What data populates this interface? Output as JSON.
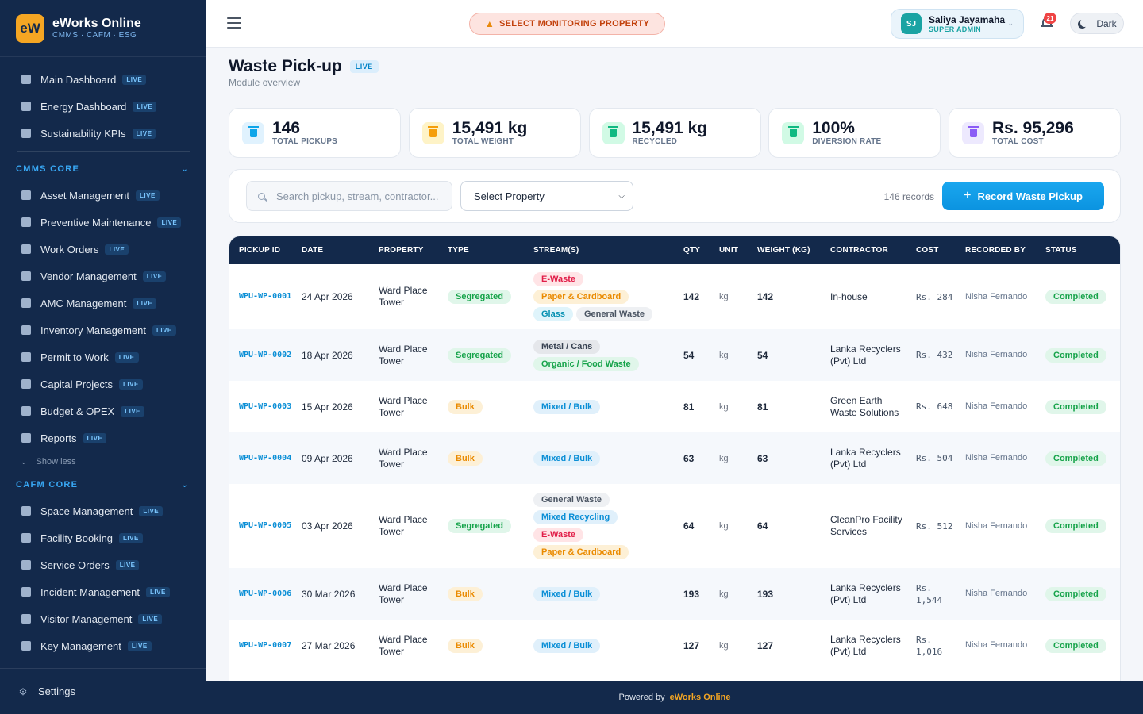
{
  "brand": {
    "logo": "eW",
    "name": "eWorks Online",
    "tagline": "CMMS · CAFM · ESG"
  },
  "sidebar": {
    "top_items": [
      {
        "label": "Main Dashboard",
        "badge": "LIVE",
        "icon": "grid-icon"
      },
      {
        "label": "Energy Dashboard",
        "badge": "LIVE",
        "icon": "bolt-icon"
      },
      {
        "label": "Sustainability KPIs",
        "badge": "LIVE",
        "icon": "document-icon"
      }
    ],
    "cmms": {
      "title": "CMMS CORE",
      "items": [
        {
          "label": "Asset Management",
          "badge": "LIVE"
        },
        {
          "label": "Preventive Maintenance",
          "badge": "LIVE"
        },
        {
          "label": "Work Orders",
          "badge": "LIVE"
        },
        {
          "label": "Vendor Management",
          "badge": "LIVE"
        },
        {
          "label": "AMC Management",
          "badge": "LIVE"
        },
        {
          "label": "Inventory Management",
          "badge": "LIVE"
        },
        {
          "label": "Permit to Work",
          "badge": "LIVE"
        },
        {
          "label": "Capital Projects",
          "badge": "LIVE"
        },
        {
          "label": "Budget & OPEX",
          "badge": "LIVE"
        },
        {
          "label": "Reports",
          "badge": "LIVE"
        }
      ],
      "show_less": "Show less"
    },
    "cafm": {
      "title": "CAFM CORE",
      "items": [
        {
          "label": "Space Management",
          "badge": "LIVE"
        },
        {
          "label": "Facility Booking",
          "badge": "LIVE"
        },
        {
          "label": "Service Orders",
          "badge": "LIVE"
        },
        {
          "label": "Incident Management",
          "badge": "LIVE"
        },
        {
          "label": "Visitor Management",
          "badge": "LIVE"
        },
        {
          "label": "Key Management",
          "badge": "LIVE"
        }
      ]
    },
    "settings": "Settings"
  },
  "topbar": {
    "monitor_label": "SELECT MONITORING PROPERTY",
    "user": {
      "initials": "SJ",
      "name": "Saliya Jayamaha",
      "role": "SUPER ADMIN"
    },
    "notifications": "21",
    "theme_toggle": "Dark"
  },
  "page": {
    "title": "Waste Pick-up",
    "badge": "LIVE",
    "subtitle": "Module overview"
  },
  "stats": [
    {
      "value": "146",
      "label": "TOTAL PICKUPS",
      "color": "#0ea5e9",
      "bg": "#e0f2fe"
    },
    {
      "value": "15,491 kg",
      "label": "TOTAL WEIGHT",
      "color": "#f59e0b",
      "bg": "#fef3c7"
    },
    {
      "value": "15,491 kg",
      "label": "RECYCLED",
      "color": "#10b981",
      "bg": "#d1fae5"
    },
    {
      "value": "100%",
      "label": "DIVERSION RATE",
      "color": "#10b981",
      "bg": "#d1fae5"
    },
    {
      "value": "Rs. 95,296",
      "label": "TOTAL COST",
      "color": "#8b5cf6",
      "bg": "#ede9fe"
    }
  ],
  "toolbar": {
    "search_placeholder": "Search pickup, stream, contractor...",
    "property_select": "Select Property",
    "records": "146 records",
    "record_button": "Record Waste Pickup"
  },
  "table": {
    "columns": [
      "PICKUP ID",
      "DATE",
      "PROPERTY",
      "TYPE",
      "STREAM(S)",
      "QTY",
      "UNIT",
      "WEIGHT (KG)",
      "CONTRACTOR",
      "COST",
      "RECORDED BY",
      "STATUS"
    ],
    "rows": [
      {
        "id": "WPU-WP-0001",
        "date": "24 Apr 2026",
        "property": "Ward Place Tower",
        "type": "Segregated",
        "streams": [
          "E-Waste",
          "Paper & Cardboard",
          "Glass",
          "General Waste"
        ],
        "qty": "142",
        "unit": "kg",
        "weight": "142",
        "contractor": "In-house",
        "cost": "Rs. 284",
        "recorded_by": "Nisha Fernando",
        "status": "Completed"
      },
      {
        "id": "WPU-WP-0002",
        "date": "18 Apr 2026",
        "property": "Ward Place Tower",
        "type": "Segregated",
        "streams": [
          "Metal / Cans",
          "Organic / Food Waste"
        ],
        "qty": "54",
        "unit": "kg",
        "weight": "54",
        "contractor": "Lanka Recyclers (Pvt) Ltd",
        "cost": "Rs. 432",
        "recorded_by": "Nisha Fernando",
        "status": "Completed"
      },
      {
        "id": "WPU-WP-0003",
        "date": "15 Apr 2026",
        "property": "Ward Place Tower",
        "type": "Bulk",
        "streams": [
          "Mixed / Bulk"
        ],
        "qty": "81",
        "unit": "kg",
        "weight": "81",
        "contractor": "Green Earth Waste Solutions",
        "cost": "Rs. 648",
        "recorded_by": "Nisha Fernando",
        "status": "Completed"
      },
      {
        "id": "WPU-WP-0004",
        "date": "09 Apr 2026",
        "property": "Ward Place Tower",
        "type": "Bulk",
        "streams": [
          "Mixed / Bulk"
        ],
        "qty": "63",
        "unit": "kg",
        "weight": "63",
        "contractor": "Lanka Recyclers (Pvt) Ltd",
        "cost": "Rs. 504",
        "recorded_by": "Nisha Fernando",
        "status": "Completed"
      },
      {
        "id": "WPU-WP-0005",
        "date": "03 Apr 2026",
        "property": "Ward Place Tower",
        "type": "Segregated",
        "streams": [
          "General Waste",
          "Mixed Recycling",
          "E-Waste",
          "Paper & Cardboard"
        ],
        "qty": "64",
        "unit": "kg",
        "weight": "64",
        "contractor": "CleanPro Facility Services",
        "cost": "Rs. 512",
        "recorded_by": "Nisha Fernando",
        "status": "Completed"
      },
      {
        "id": "WPU-WP-0006",
        "date": "30 Mar 2026",
        "property": "Ward Place Tower",
        "type": "Bulk",
        "streams": [
          "Mixed / Bulk"
        ],
        "qty": "193",
        "unit": "kg",
        "weight": "193",
        "contractor": "Lanka Recyclers (Pvt) Ltd",
        "cost": "Rs. 1,544",
        "recorded_by": "Nisha Fernando",
        "status": "Completed"
      },
      {
        "id": "WPU-WP-0007",
        "date": "27 Mar 2026",
        "property": "Ward Place Tower",
        "type": "Bulk",
        "streams": [
          "Mixed / Bulk"
        ],
        "qty": "127",
        "unit": "kg",
        "weight": "127",
        "contractor": "Lanka Recyclers (Pvt) Ltd",
        "cost": "Rs. 1,016",
        "recorded_by": "Nisha Fernando",
        "status": "Completed"
      }
    ]
  },
  "stream_colors": {
    "E-Waste": {
      "fg": "#e11d48",
      "bg": "#ffe4e6"
    },
    "Paper & Cardboard": {
      "fg": "#ea8a00",
      "bg": "#fdf0d6"
    },
    "Glass": {
      "fg": "#0891b2",
      "bg": "#dff4fb"
    },
    "General Waste": {
      "fg": "#4b5563",
      "bg": "#eef0f3"
    },
    "Metal / Cans": {
      "fg": "#374151",
      "bg": "#e5e7eb"
    },
    "Organic / Food Waste": {
      "fg": "#16a34a",
      "bg": "#e0f6ea"
    },
    "Mixed / Bulk": {
      "fg": "#0b8fd6",
      "bg": "#e0f0fb"
    },
    "Mixed Recycling": {
      "fg": "#0b8fd6",
      "bg": "#e0f0fb"
    }
  },
  "footer": {
    "text": "Powered by",
    "brand": "eWorks Online"
  }
}
